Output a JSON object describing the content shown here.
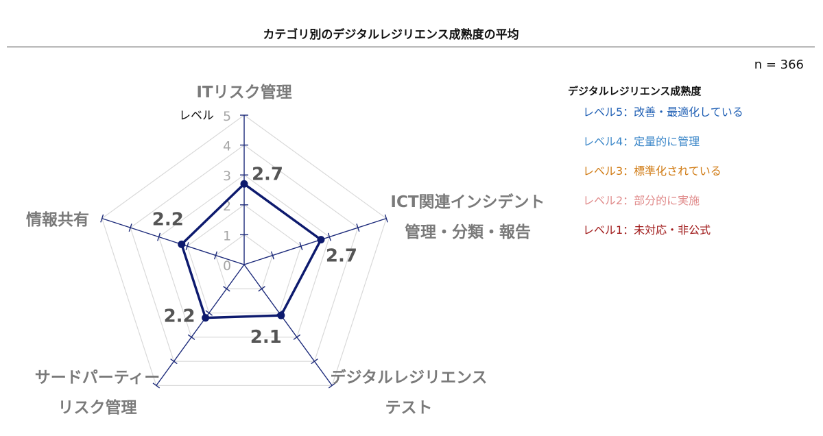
{
  "title": "カテゴリ別のデジタルレジリエンス成熟度の平均",
  "n_label": "n = 366",
  "legend": {
    "title": "デジタルレジリエンス成熟度",
    "items": [
      {
        "label": "レベル5：改善・最適化している",
        "color": "#1f5fb4"
      },
      {
        "label": "レベル4：定量的に管理",
        "color": "#3a86c8"
      },
      {
        "label": "レベル3：標準化されている",
        "color": "#d07a12"
      },
      {
        "label": "レベル2：部分的に実施",
        "color": "#e08b8b"
      },
      {
        "label": "レベル1：未対応・非公式",
        "color": "#a01a1a"
      }
    ]
  },
  "chart_data": {
    "type": "radar",
    "title": "カテゴリ別のデジタルレジリエンス成熟度の平均",
    "axis_label": "レベル",
    "range": [
      0,
      5
    ],
    "ticks": [
      0,
      1,
      2,
      3,
      4,
      5
    ],
    "grid": true,
    "categories": [
      [
        "ITリスク管理"
      ],
      [
        "ICT関連インシデント",
        "管理・分類・報告"
      ],
      [
        "デジタルレジリエンス",
        "テスト"
      ],
      [
        "サードパーティー",
        "リスク管理"
      ],
      [
        "情報共有"
      ]
    ],
    "values": [
      2.7,
      2.7,
      2.1,
      2.2,
      2.2
    ],
    "value_labels": [
      "2.7",
      "2.7",
      "2.1",
      "2.2",
      "2.2"
    ],
    "series_color": "#0d1a6e",
    "axis_color": "#1c2a7a",
    "grid_color": "#d9d9d9"
  }
}
